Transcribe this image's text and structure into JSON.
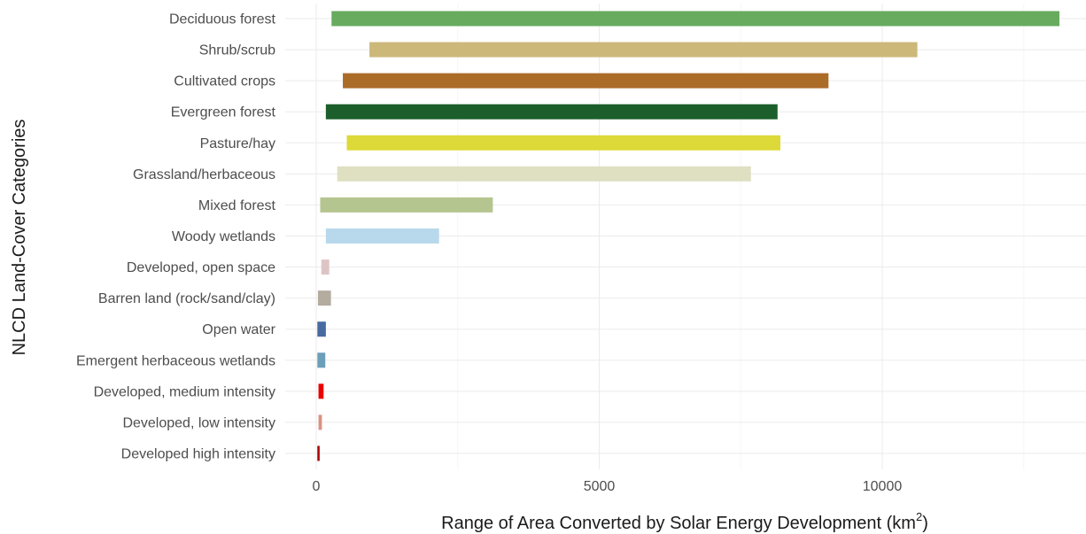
{
  "chart_data": {
    "type": "bar",
    "orientation": "horizontal",
    "title": "",
    "xlabel": "Range of Area Converted by Solar Energy Development (km",
    "xlabel_superscript": "2",
    "xlabel_suffix": ")",
    "ylabel": "NLCD Land-Cover Categories",
    "xlim": [
      -350,
      13350
    ],
    "xticks": [
      0,
      5000,
      10000
    ],
    "xtick_labels": [
      "0",
      "5000",
      "10000"
    ],
    "grid": true,
    "legend": "none",
    "categories": [
      "Deciduous forest",
      "Shrub/scrub",
      "Cultivated crops",
      "Evergreen forest",
      "Pasture/hay",
      "Grassland/herbaceous",
      "Mixed forest",
      "Woody wetlands",
      "Developed, open space",
      "Barren land (rock/sand/clay)",
      "Open water",
      "Emergent herbaceous wetlands",
      "Developed, medium intensity",
      "Developed, low intensity",
      "Developed high intensity"
    ],
    "ranges": [
      [
        270,
        13130
      ],
      [
        940,
        10620
      ],
      [
        470,
        9050
      ],
      [
        170,
        8150
      ],
      [
        540,
        8200
      ],
      [
        370,
        7680
      ],
      [
        70,
        3120
      ],
      [
        170,
        2170
      ],
      [
        90,
        230
      ],
      [
        30,
        260
      ],
      [
        20,
        170
      ],
      [
        20,
        160
      ],
      [
        40,
        130
      ],
      [
        40,
        100
      ],
      [
        20,
        60
      ]
    ],
    "colors": [
      "#68ab5f",
      "#ccb879",
      "#ab6c28",
      "#1c5f2c",
      "#dcd939",
      "#dfdfc2",
      "#b5c58f",
      "#b8d9eb",
      "#dec5c5",
      "#b3ac9f",
      "#476ba1",
      "#6c9fb8",
      "#eb0000",
      "#d99282",
      "#ab0000"
    ]
  }
}
